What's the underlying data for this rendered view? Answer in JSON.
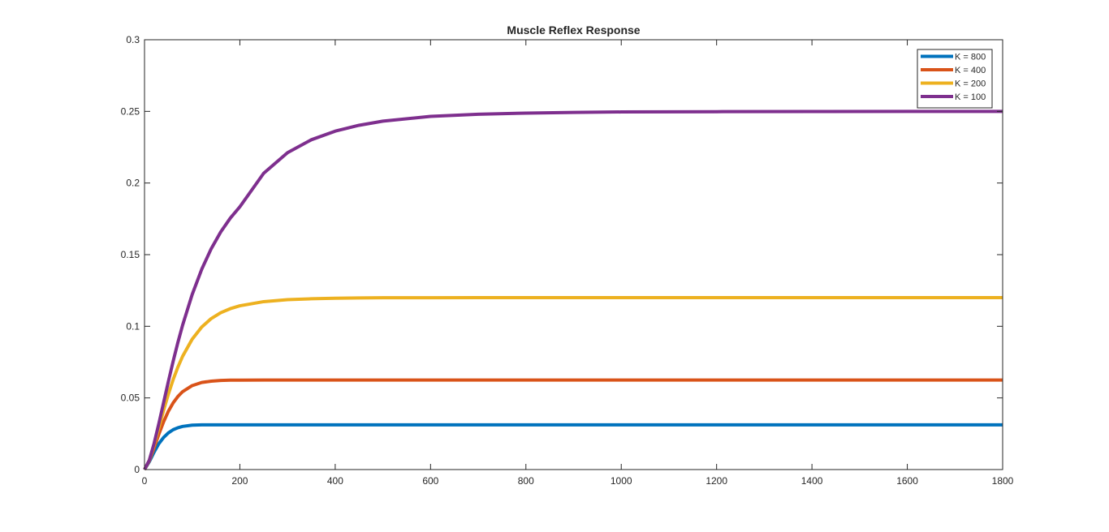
{
  "figure": {
    "background": "#ffffff",
    "axes_color": "#262626"
  },
  "chart_data": {
    "type": "line",
    "title": "Muscle Reflex Response",
    "xlabel": "",
    "ylabel": "",
    "xlim": [
      0,
      1800
    ],
    "ylim": [
      0,
      0.3
    ],
    "xticks": [
      0,
      200,
      400,
      600,
      800,
      1000,
      1200,
      1400,
      1600,
      1800
    ],
    "xtick_labels": [
      "0",
      "200",
      "400",
      "600",
      "800",
      "1000",
      "1200",
      "1400",
      "1600",
      "1800"
    ],
    "yticks": [
      0,
      0.05,
      0.1,
      0.15,
      0.2,
      0.25,
      0.3
    ],
    "ytick_labels": [
      "0",
      "0.05",
      "0.1",
      "0.15",
      "0.2",
      "0.25",
      "0.3"
    ],
    "grid": false,
    "legend_position": "top-right",
    "x": [
      0,
      10,
      20,
      30,
      40,
      50,
      60,
      70,
      80,
      100,
      120,
      140,
      160,
      180,
      200,
      250,
      300,
      350,
      400,
      450,
      500,
      600,
      700,
      800,
      900,
      1000,
      1200,
      1400,
      1600,
      1800
    ],
    "series": [
      {
        "name": "K = 800",
        "color": "#0072BD",
        "values": [
          0,
          0.0054,
          0.0121,
          0.018,
          0.0224,
          0.0256,
          0.0278,
          0.0292,
          0.0301,
          0.031,
          0.0312,
          0.0312,
          0.0312,
          0.0312,
          0.0312,
          0.0312,
          0.0312,
          0.0312,
          0.0312,
          0.0312,
          0.0312,
          0.0312,
          0.0312,
          0.0312,
          0.0312,
          0.0312,
          0.0312,
          0.0312,
          0.0312,
          0.0312
        ]
      },
      {
        "name": "K = 400",
        "color": "#D95319",
        "values": [
          0,
          0.006,
          0.0151,
          0.0246,
          0.0333,
          0.0407,
          0.0465,
          0.051,
          0.0544,
          0.0586,
          0.0608,
          0.0617,
          0.0622,
          0.0624,
          0.0624,
          0.0625,
          0.0625,
          0.0625,
          0.0625,
          0.0625,
          0.0625,
          0.0625,
          0.0625,
          0.0625,
          0.0625,
          0.0625,
          0.0625,
          0.0625,
          0.0625,
          0.0625
        ]
      },
      {
        "name": "K = 200",
        "color": "#EDB120",
        "values": [
          0,
          0.0064,
          0.017,
          0.0291,
          0.0413,
          0.0526,
          0.0627,
          0.0715,
          0.0791,
          0.091,
          0.0995,
          0.1054,
          0.1095,
          0.1123,
          0.1143,
          0.1172,
          0.1186,
          0.1192,
          0.1196,
          0.1198,
          0.1199,
          0.1199,
          0.12,
          0.12,
          0.12,
          0.12,
          0.12,
          0.12,
          0.12,
          0.12
        ]
      },
      {
        "name": "K = 100",
        "color": "#7E2F8E",
        "values": [
          0,
          0.0065,
          0.0181,
          0.032,
          0.0467,
          0.0614,
          0.0755,
          0.0887,
          0.1009,
          0.1222,
          0.1398,
          0.1542,
          0.1659,
          0.1755,
          0.1834,
          0.2068,
          0.2212,
          0.2302,
          0.2362,
          0.2403,
          0.2432,
          0.2465,
          0.248,
          0.2488,
          0.2493,
          0.2496,
          0.2498,
          0.2499,
          0.25,
          0.25
        ]
      }
    ]
  }
}
